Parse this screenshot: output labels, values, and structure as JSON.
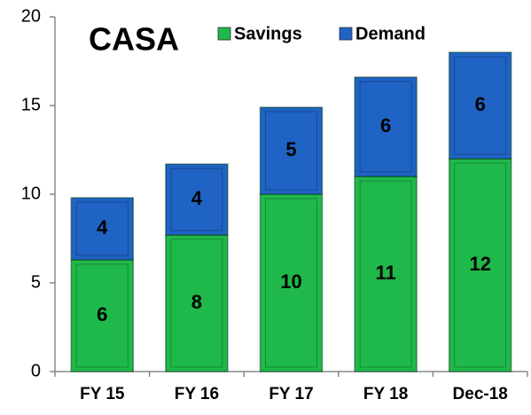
{
  "chart_data": {
    "type": "stacked_bar",
    "title": "CASA",
    "categories": [
      "FY 15",
      "FY 16",
      "FY 17",
      "FY 18",
      "Dec-18"
    ],
    "series": [
      {
        "name": "Savings",
        "color": "#1fb84a",
        "values": [
          6.3,
          7.7,
          10,
          11,
          12
        ],
        "value_labels": [
          "6",
          "8",
          "10",
          "11",
          "12"
        ]
      },
      {
        "name": "Demand",
        "color": "#1f63c4",
        "values": [
          3.5,
          4,
          4.9,
          5.6,
          6
        ],
        "value_labels": [
          "4",
          "4",
          "5",
          "6",
          "6"
        ]
      }
    ],
    "ylim": [
      0,
      20
    ],
    "yticks": [
      0,
      5,
      10,
      15,
      20
    ],
    "legend": "top"
  }
}
